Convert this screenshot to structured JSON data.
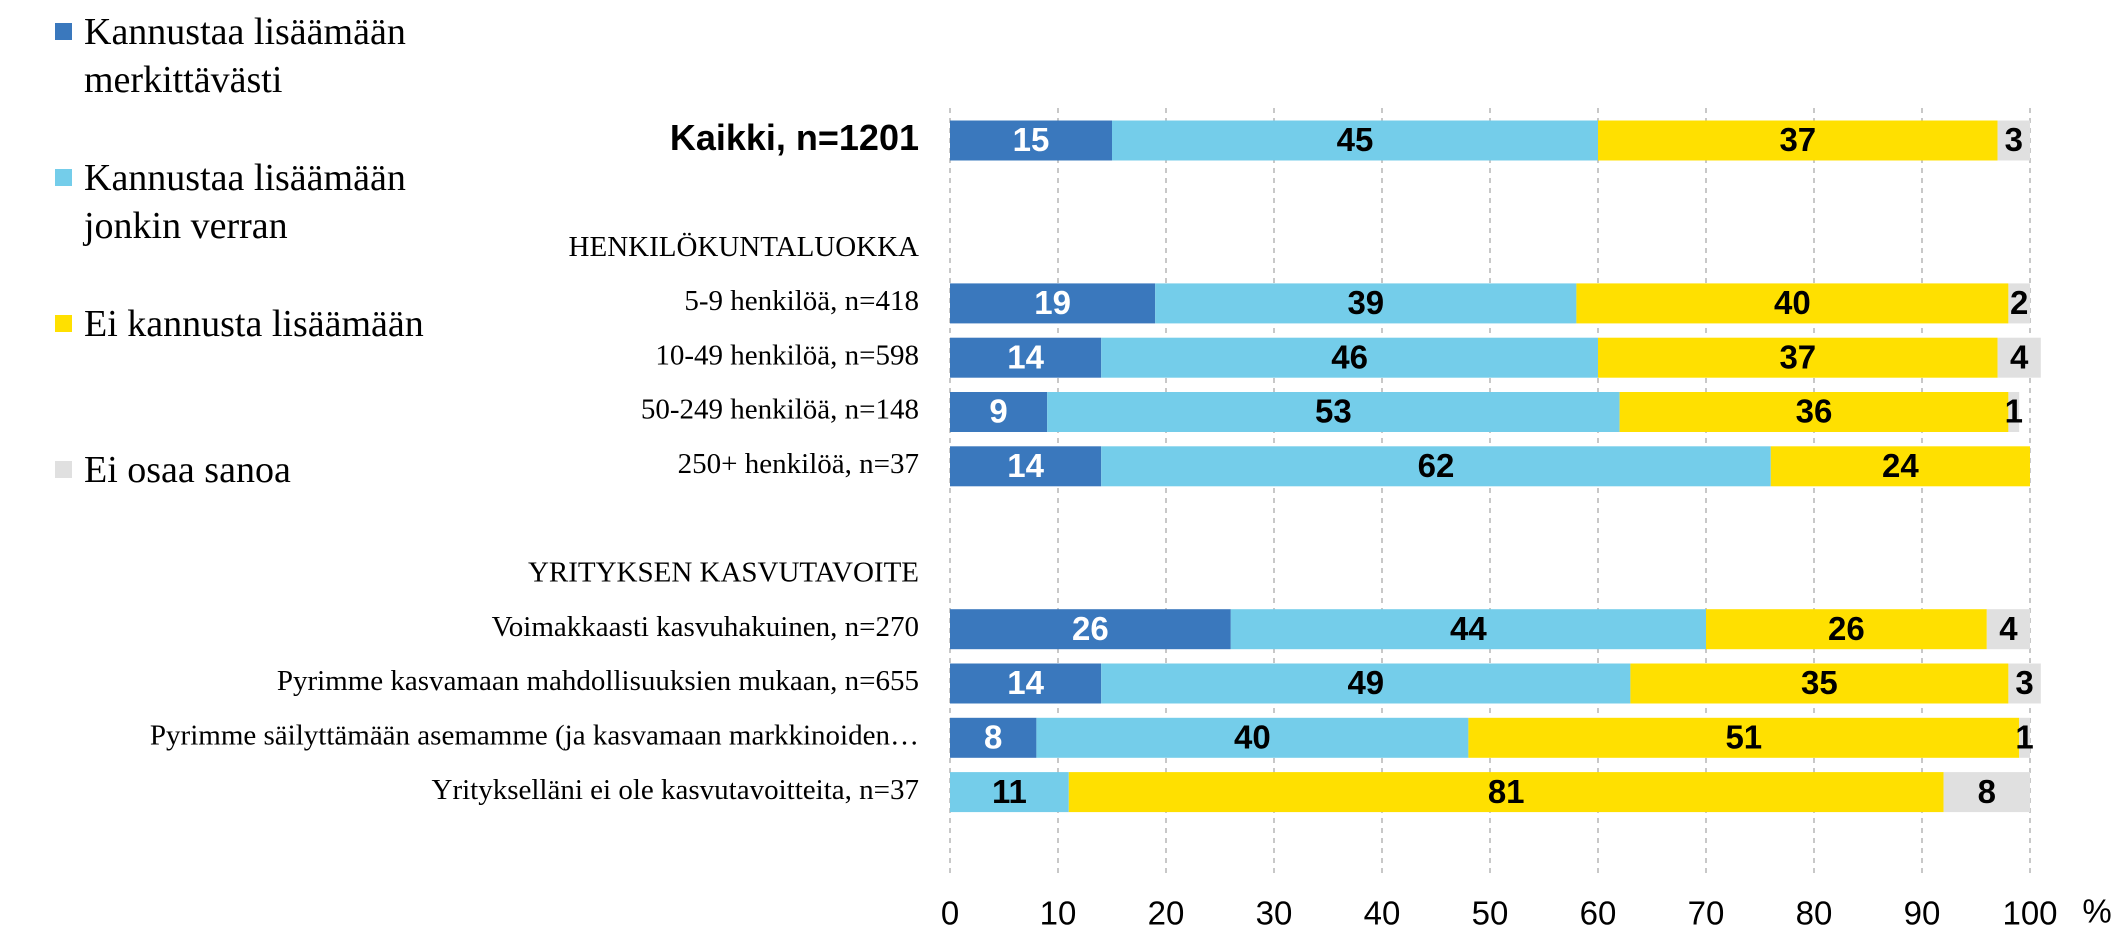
{
  "chart_data": {
    "type": "stacked_barh",
    "categories": [
      "Kaikki, n=1201",
      null,
      "HENKILÖKUNTALUOKKA",
      "5-9 henkilöä, n=418",
      "10-49 henkilöä, n=598",
      "50-249 henkilöä, n=148",
      "250+ henkilöä, n=37",
      null,
      "YRITYKSEN KASVUTAVOITE",
      "Voimakkaasti kasvuhakuinen, n=270",
      "Pyrimme kasvamaan mahdollisuuksien mukaan, n=655",
      "Pyrimme säilyttämään asemamme (ja kasvamaan markkinoiden…",
      "Yritykselläni ei ole kasvutavoitteita, n=37"
    ],
    "series": [
      {
        "name": "Kannustaa lisäämään merkittävästi",
        "color": "#3a78bd",
        "values": [
          15,
          null,
          null,
          19,
          14,
          9,
          14,
          null,
          null,
          26,
          14,
          8,
          null
        ]
      },
      {
        "name": "Kannustaa lisäämään jonkin verran",
        "color": "#74cdea",
        "values": [
          45,
          null,
          null,
          39,
          46,
          53,
          62,
          null,
          null,
          44,
          49,
          40,
          11
        ]
      },
      {
        "name": "Ei kannusta lisäämään",
        "color": "#ffe000",
        "values": [
          37,
          null,
          null,
          40,
          37,
          36,
          24,
          null,
          null,
          26,
          35,
          51,
          81
        ]
      },
      {
        "name": "Ei osaa sanoa",
        "color": "#e0e0e0",
        "values": [
          3,
          null,
          null,
          2,
          4,
          1,
          null,
          null,
          null,
          4,
          3,
          1,
          8
        ]
      }
    ],
    "xlabel": "%",
    "xlim": [
      0,
      100
    ],
    "xticks": [
      0,
      10,
      20,
      30,
      40,
      50,
      60,
      70,
      80,
      90,
      100
    ],
    "grid": true
  }
}
